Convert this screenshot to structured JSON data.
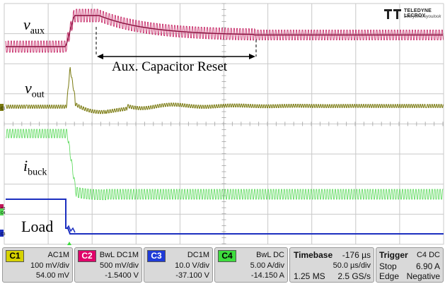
{
  "labels": {
    "v_aux": {
      "sym": "v",
      "sub": "aux"
    },
    "v_out": {
      "sym": "v",
      "sub": "out"
    },
    "i_buck": {
      "sym": "i",
      "sub": "buck"
    },
    "load": "Load",
    "annotation": "Aux. Capacitor Reset"
  },
  "logo": {
    "brand": "TELEDYNE LECROY",
    "tagline": "Everywhereyoulook"
  },
  "channel_markers": [
    "C1",
    "C2",
    "C4",
    "C3"
  ],
  "channels": [
    {
      "tag": "C1",
      "coupling": "AC1M",
      "vdiv": "100 mV/div",
      "offset": "54.00 mV",
      "color": "#d6d200"
    },
    {
      "tag": "C2",
      "coupling": "BwL DC1M",
      "vdiv": "500 mV/div",
      "offset": "-1.5400 V",
      "color": "#e0006a"
    },
    {
      "tag": "C3",
      "coupling": "DC1M",
      "vdiv": "10.0 V/div",
      "offset": "-37.100 V",
      "color": "#1f3bd8"
    },
    {
      "tag": "C4",
      "coupling": "BwL DC",
      "vdiv": "5.00 A/div",
      "offset": "-14.150 A",
      "color": "#3ddc3d"
    }
  ],
  "timebase": {
    "label": "Timebase",
    "delay": "-176 µs",
    "tdiv": "50.0 µs/div",
    "samples": "1.25 MS",
    "rate": "2.5 GS/s"
  },
  "trigger": {
    "label": "Trigger",
    "source": "C4 DC",
    "mode": "Stop",
    "level": "6.90 A",
    "type": "Edge",
    "slope": "Negative"
  },
  "colors": {
    "aux": "#c2185b",
    "out": "#7a7a10",
    "buck": "#55d855",
    "load": "#1c2fc0",
    "grid": "#c8c8c8",
    "background": "#ffffff"
  }
}
